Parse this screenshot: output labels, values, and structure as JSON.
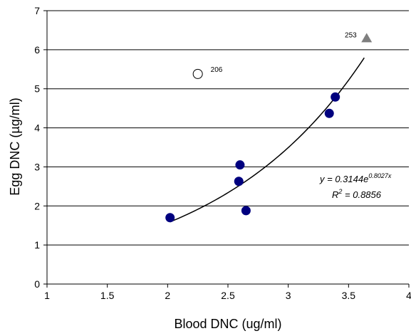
{
  "chart_data": {
    "type": "scatter",
    "title": "",
    "xlabel": "Blood DNC (ug/ml)",
    "ylabel": "Egg DNC (µg/ml)",
    "xlim": [
      1,
      4
    ],
    "ylim": [
      0,
      7
    ],
    "x_ticks": [
      "1",
      "1.5",
      "2",
      "2.5",
      "3",
      "3.5",
      "4"
    ],
    "y_ticks": [
      "0",
      "1",
      "2",
      "3",
      "4",
      "5",
      "6",
      "7"
    ],
    "grid": {
      "horizontal": true,
      "vertical": false
    },
    "legend": "none",
    "series": [
      {
        "marker": "filled-circle",
        "color": "#00007f",
        "points": [
          {
            "x": 2.02,
            "y": 1.7
          },
          {
            "x": 2.59,
            "y": 2.63
          },
          {
            "x": 2.6,
            "y": 3.05
          },
          {
            "x": 2.65,
            "y": 1.88
          },
          {
            "x": 3.34,
            "y": 4.37
          },
          {
            "x": 3.39,
            "y": 4.79
          }
        ]
      },
      {
        "marker": "open-circle",
        "color": "#000000",
        "points": [
          {
            "x": 2.25,
            "y": 5.38,
            "label": "206"
          }
        ]
      },
      {
        "marker": "triangle",
        "color": "#7f7f7f",
        "points": [
          {
            "x": 3.65,
            "y": 6.3,
            "label": "253"
          }
        ]
      }
    ],
    "trendline": {
      "type": "exponential",
      "a": 0.3144,
      "b": 0.8027,
      "x_range": [
        2.02,
        3.63
      ],
      "equation_prefix": "y = 0.3144e",
      "equation_exponent": "0.8027x",
      "r2_prefix": "R",
      "r2_exponent": "2",
      "r2_value": " = 0.8856"
    }
  }
}
